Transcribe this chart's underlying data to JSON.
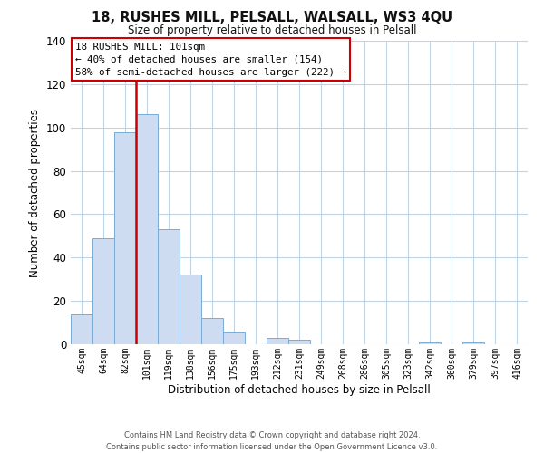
{
  "title": "18, RUSHES MILL, PELSALL, WALSALL, WS3 4QU",
  "subtitle": "Size of property relative to detached houses in Pelsall",
  "xlabel": "Distribution of detached houses by size in Pelsall",
  "ylabel": "Number of detached properties",
  "categories": [
    "45sqm",
    "64sqm",
    "82sqm",
    "101sqm",
    "119sqm",
    "138sqm",
    "156sqm",
    "175sqm",
    "193sqm",
    "212sqm",
    "231sqm",
    "249sqm",
    "268sqm",
    "286sqm",
    "305sqm",
    "323sqm",
    "342sqm",
    "360sqm",
    "379sqm",
    "397sqm",
    "416sqm"
  ],
  "values": [
    14,
    49,
    98,
    106,
    53,
    32,
    12,
    6,
    0,
    3,
    2,
    0,
    0,
    0,
    0,
    0,
    1,
    0,
    1,
    0,
    0
  ],
  "bar_color": "#cddcf0",
  "bar_edge_color": "#7aaad4",
  "highlight_index": 3,
  "highlight_line_color": "#cc0000",
  "ylim": [
    0,
    140
  ],
  "yticks": [
    0,
    20,
    40,
    60,
    80,
    100,
    120,
    140
  ],
  "annotation_title": "18 RUSHES MILL: 101sqm",
  "annotation_line1": "← 40% of detached houses are smaller (154)",
  "annotation_line2": "58% of semi-detached houses are larger (222) →",
  "annotation_box_color": "#ffffff",
  "annotation_box_edge": "#cc0000",
  "footer_line1": "Contains HM Land Registry data © Crown copyright and database right 2024.",
  "footer_line2": "Contains public sector information licensed under the Open Government Licence v3.0.",
  "background_color": "#ffffff",
  "grid_color": "#c0d4e8"
}
